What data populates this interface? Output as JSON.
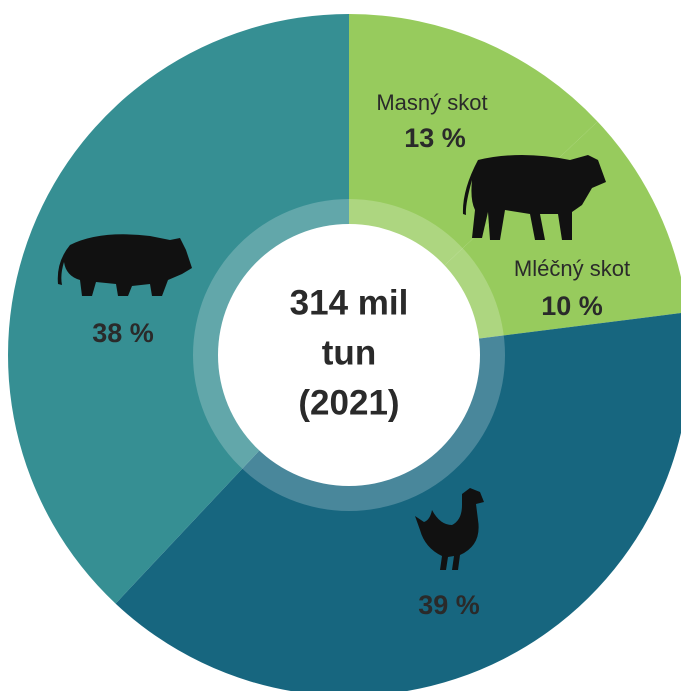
{
  "chart_data": {
    "type": "donut",
    "categories": [
      "Masný skot",
      "Mléčný skot",
      null,
      null
    ],
    "values": [
      13,
      10,
      39,
      38
    ],
    "value_labels": [
      "13 %",
      "10 %",
      "39 %",
      "38 %"
    ],
    "colors": [
      "#97cb5d",
      "#97cb5d",
      "#17667f",
      "#368f93"
    ],
    "center_text": [
      "314 mil",
      "tun",
      "(2021)"
    ]
  }
}
